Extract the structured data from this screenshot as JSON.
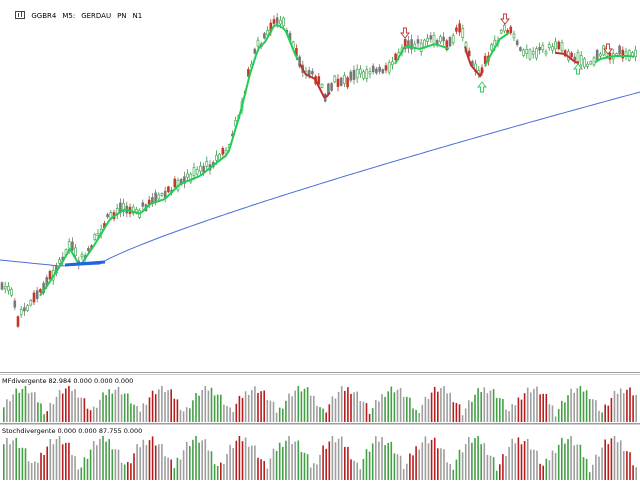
{
  "header": {
    "symbol": "GGBR4",
    "timeframe": "M5:",
    "description": "GERDAU",
    "tf2": "PN",
    "tf3": "N1"
  },
  "indicator1": {
    "label": "MFdivergente 82.984 0.000 0.000 0.000"
  },
  "indicator2": {
    "label": "Stochdivergente 0.000 0.000 87.755 0.000"
  },
  "colors": {
    "bull_candle": "#2e9e3e",
    "bear_candle": "#c0392b",
    "neutral_candle": "#777777",
    "ma_line": "#4a6fd6",
    "trend_up": "#22cc55",
    "trend_down": "#c0302e",
    "hist_green": "#43a047",
    "hist_red": "#b71c1c",
    "hist_gray": "#9e9e9e"
  },
  "icons": {
    "arrow_up": "up-arrow-icon",
    "arrow_down": "down-arrow-icon"
  }
}
